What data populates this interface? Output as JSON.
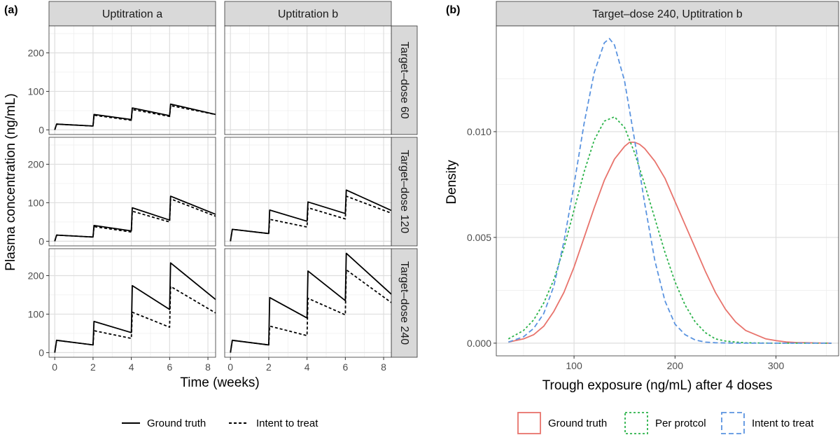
{
  "panel_a": {
    "label": "(a)",
    "columns": [
      "Uptitration a",
      "Uptitration b"
    ],
    "rows": [
      "Target–dose 60",
      "Target–dose 120",
      "Target–dose 240"
    ],
    "xlabel": "Time (weeks)",
    "ylabel": "Plasma concentration (ng/mL)",
    "x_ticks": [
      "0",
      "2",
      "4",
      "6",
      "8"
    ],
    "y_ticks": [
      "0",
      "100",
      "200"
    ],
    "legend": [
      "Ground truth",
      "Intent to treat"
    ]
  },
  "panel_b": {
    "label": "(b)",
    "strip": "Target–dose 240, Uptitration b",
    "xlabel": "Trough exposure (ng/mL) after 4 doses",
    "ylabel": "Density",
    "x_ticks": [
      "100",
      "200",
      "300"
    ],
    "y_ticks": [
      "0.000",
      "0.005",
      "0.010"
    ],
    "legend": [
      "Ground truth",
      "Per protcol",
      "Intent to treat"
    ]
  },
  "colors": {
    "ground_truth": "#e8736c",
    "per_protocol": "#2bb34a",
    "intent_to_treat": "#5b94e0",
    "strip": "#d9d9d9",
    "grid": "#dedede"
  },
  "chart_data": [
    {
      "type": "line",
      "title": "",
      "xlabel": "Time (weeks)",
      "ylabel": "Plasma concentration (ng/mL)",
      "xlim": [
        -0.3,
        8.4
      ],
      "ylim": [
        -12,
        270
      ],
      "grid": true,
      "legend_position": "bottom",
      "facets": [
        {
          "row": "Target–dose 60",
          "col": "Uptitration a",
          "series": [
            {
              "name": "Ground truth",
              "x": [
                0,
                0.1,
                2,
                2.05,
                4,
                4.05,
                6,
                6.05,
                8.4
              ],
              "y": [
                0,
                15,
                10,
                40,
                27,
                57,
                37,
                67,
                40
              ]
            },
            {
              "name": "Intent to treat",
              "x": [
                0,
                0.1,
                2,
                2.05,
                4,
                4.05,
                6,
                6.05,
                8.4
              ],
              "y": [
                0,
                15,
                10,
                38,
                25,
                53,
                35,
                63,
                40
              ]
            }
          ]
        },
        {
          "row": "Target–dose 60",
          "col": "Uptitration b",
          "series": []
        },
        {
          "row": "Target–dose 120",
          "col": "Uptitration a",
          "series": [
            {
              "name": "Ground truth",
              "x": [
                0,
                0.1,
                2,
                2.05,
                4,
                4.05,
                6,
                6.05,
                8.4
              ],
              "y": [
                0,
                16,
                11,
                41,
                27,
                87,
                55,
                117,
                70
              ]
            },
            {
              "name": "Intent to treat",
              "x": [
                0,
                0.1,
                2,
                2.05,
                4,
                4.05,
                6,
                6.05,
                8.4
              ],
              "y": [
                0,
                16,
                11,
                38,
                24,
                78,
                50,
                110,
                65
              ]
            }
          ]
        },
        {
          "row": "Target–dose 120",
          "col": "Uptitration b",
          "series": [
            {
              "name": "Ground truth",
              "x": [
                0,
                0.1,
                2,
                2.05,
                4,
                4.05,
                6,
                6.05,
                8.4
              ],
              "y": [
                0,
                31,
                20,
                81,
                52,
                102,
                72,
                133,
                80
              ]
            },
            {
              "name": "Intent to treat",
              "x": [
                0,
                0.1,
                2,
                2.05,
                4,
                4.05,
                6,
                6.05,
                8.4
              ],
              "y": [
                0,
                31,
                20,
                57,
                37,
                87,
                58,
                117,
                73
              ]
            }
          ]
        },
        {
          "row": "Target–dose 240",
          "col": "Uptitration a",
          "series": [
            {
              "name": "Ground truth",
              "x": [
                0,
                0.1,
                2,
                2.05,
                4,
                4.05,
                6,
                6.05,
                8.4
              ],
              "y": [
                0,
                32,
                20,
                81,
                52,
                174,
                112,
                233,
                138
              ]
            },
            {
              "name": "Intent to treat",
              "x": [
                0,
                0.1,
                2,
                2.05,
                4,
                4.05,
                6,
                6.05,
                8.4
              ],
              "y": [
                0,
                32,
                20,
                57,
                37,
                105,
                66,
                172,
                103
              ]
            }
          ]
        },
        {
          "row": "Target–dose 240",
          "col": "Uptitration b",
          "series": [
            {
              "name": "Ground truth",
              "x": [
                0,
                0.1,
                2,
                2.05,
                4,
                4.05,
                6,
                6.05,
                8.4
              ],
              "y": [
                0,
                32,
                20,
                143,
                90,
                212,
                135,
                258,
                152
              ]
            },
            {
              "name": "Intent to treat",
              "x": [
                0,
                0.1,
                2,
                2.05,
                4,
                4.05,
                6,
                6.05,
                8.4
              ],
              "y": [
                0,
                32,
                20,
                69,
                44,
                141,
                98,
                215,
                130
              ]
            }
          ]
        }
      ]
    },
    {
      "type": "line",
      "title": "Target–dose 240, Uptitration b",
      "xlabel": "Trough exposure (ng/mL) after 4 doses",
      "ylabel": "Density",
      "xlim": [
        23,
        362
      ],
      "ylim": [
        -0.0006,
        0.015
      ],
      "grid": true,
      "legend_position": "bottom",
      "series": [
        {
          "name": "Ground truth",
          "x": [
            35,
            50,
            60,
            70,
            80,
            90,
            100,
            110,
            120,
            130,
            140,
            150,
            155,
            160,
            165,
            170,
            180,
            190,
            200,
            210,
            220,
            230,
            240,
            250,
            260,
            270,
            280,
            290,
            300,
            310,
            320,
            330,
            340,
            355
          ],
          "y": [
            5e-05,
            0.0002,
            0.0004,
            0.0008,
            0.0015,
            0.0024,
            0.0036,
            0.005,
            0.0064,
            0.0077,
            0.0087,
            0.0093,
            0.0095,
            0.0095,
            0.0094,
            0.0092,
            0.0086,
            0.0078,
            0.0067,
            0.0056,
            0.0045,
            0.0034,
            0.0024,
            0.0016,
            0.001,
            0.0006,
            0.0004,
            0.0002,
            0.00012,
            6e-05,
            3e-05,
            2e-05,
            1e-05,
            0.0
          ]
        },
        {
          "name": "Per protcol",
          "x": [
            35,
            50,
            60,
            70,
            80,
            90,
            100,
            110,
            120,
            130,
            140,
            150,
            160,
            170,
            180,
            190,
            200,
            210,
            220,
            230,
            240,
            250,
            260,
            270,
            280,
            300,
            320,
            355
          ],
          "y": [
            0.0002,
            0.0006,
            0.0011,
            0.0019,
            0.003,
            0.0045,
            0.0063,
            0.0081,
            0.0096,
            0.0105,
            0.0107,
            0.0102,
            0.009,
            0.0075,
            0.0059,
            0.0043,
            0.0029,
            0.0018,
            0.001,
            0.0005,
            0.0002,
            0.0001,
            5e-05,
            2e-05,
            1e-05,
            0.0,
            0.0,
            0.0
          ]
        },
        {
          "name": "Intent to treat",
          "x": [
            35,
            50,
            60,
            70,
            80,
            90,
            100,
            110,
            120,
            130,
            135,
            140,
            150,
            160,
            170,
            180,
            190,
            200,
            210,
            220,
            230,
            240,
            250,
            260,
            280,
            300,
            355
          ],
          "y": [
            5e-05,
            0.0003,
            0.0007,
            0.0014,
            0.0027,
            0.0048,
            0.0075,
            0.0104,
            0.0128,
            0.0142,
            0.0144,
            0.0141,
            0.0124,
            0.0096,
            0.0066,
            0.0039,
            0.002,
            0.0009,
            0.0004,
            0.00015,
            5e-05,
            2e-05,
            1e-05,
            0.0,
            0.0,
            0.0,
            0.0
          ]
        }
      ]
    }
  ]
}
